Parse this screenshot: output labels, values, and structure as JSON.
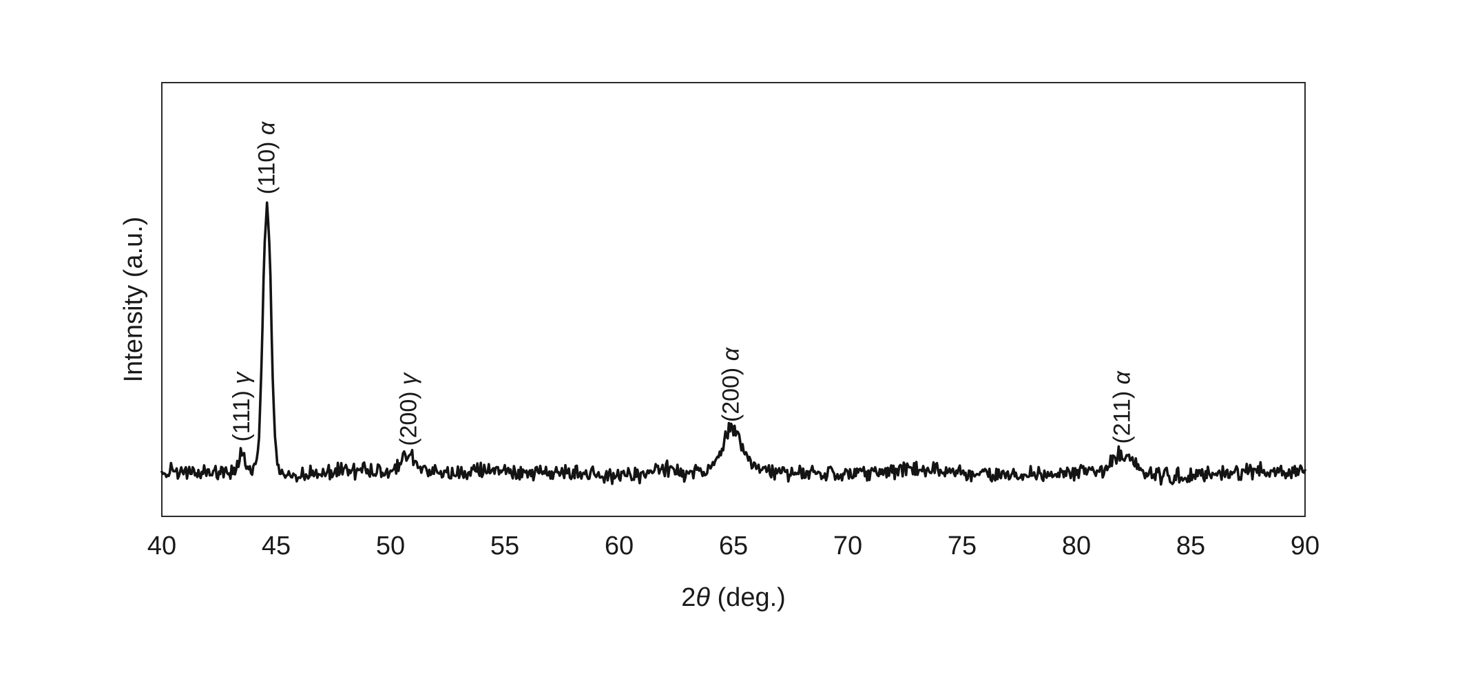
{
  "figure": {
    "background": "#ffffff",
    "frame_color": "#2a2a2a",
    "text_color": "#1a1a1a"
  },
  "chart_data": {
    "type": "line",
    "title": "",
    "xlabel": "2θ (deg.)",
    "ylabel": "Intensity (a.u.)",
    "xlim": [
      40,
      90
    ],
    "ylim": [
      0,
      1
    ],
    "x_ticks": [
      40,
      45,
      50,
      55,
      60,
      65,
      70,
      75,
      80,
      85,
      90
    ],
    "y_ticks": [],
    "grid": false,
    "legend": "none",
    "line_color": "#141414",
    "baseline_level": 0.1,
    "noise_amplitude": 0.013,
    "peaks": [
      {
        "label": "(111) γ",
        "phase": "γ",
        "hkl": "(111)",
        "position": 43.5,
        "height": 0.05,
        "sigma": 0.15
      },
      {
        "label": "(110) α",
        "phase": "α",
        "hkl": "(110)",
        "position": 44.6,
        "height": 0.62,
        "sigma": 0.18
      },
      {
        "label": "(200) γ",
        "phase": "γ",
        "hkl": "(200)",
        "position": 50.8,
        "height": 0.04,
        "sigma": 0.28
      },
      {
        "label": "(200) α",
        "phase": "α",
        "hkl": "(200)",
        "position": 64.9,
        "height": 0.095,
        "sigma": 0.44
      },
      {
        "label": "(211) α",
        "phase": "α",
        "hkl": "(211)",
        "position": 82.0,
        "height": 0.045,
        "sigma": 0.5
      }
    ],
    "minor_bumps": [
      {
        "position": 54.4,
        "height": 0.012,
        "sigma": 0.8
      },
      {
        "position": 62.0,
        "height": 0.014,
        "sigma": 0.35
      }
    ]
  }
}
